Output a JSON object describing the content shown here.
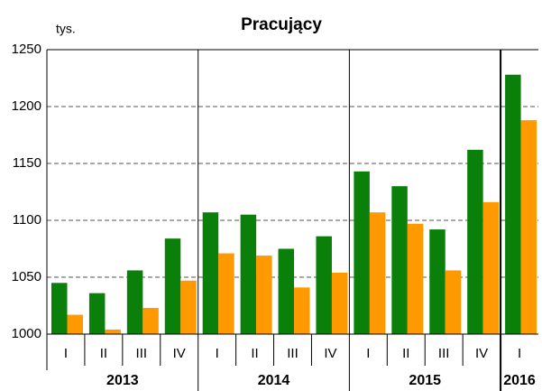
{
  "chart_data": {
    "type": "bar",
    "title": "Pracujący",
    "ylabel": "tys.",
    "groups": [
      {
        "name": "2013",
        "categories": [
          "I",
          "II",
          "III",
          "IV"
        ]
      },
      {
        "name": "2014",
        "categories": [
          "I",
          "II",
          "III",
          "IV"
        ]
      },
      {
        "name": "2015",
        "categories": [
          "I",
          "II",
          "III",
          "IV"
        ]
      },
      {
        "name": "2016",
        "categories": [
          "I"
        ]
      }
    ],
    "series": [
      {
        "color": "#0a800a",
        "values": [
          1045,
          1036,
          1056,
          1084,
          1107,
          1105,
          1075,
          1086,
          1143,
          1130,
          1092,
          1162,
          1228
        ]
      },
      {
        "color": "#ff9900",
        "values": [
          1017,
          1004,
          1023,
          1047,
          1071,
          1069,
          1041,
          1054,
          1107,
          1097,
          1056,
          1116,
          1188
        ]
      }
    ],
    "ylim": [
      1000,
      1250
    ],
    "yticks": [
      1000,
      1050,
      1100,
      1150,
      1200,
      1250
    ],
    "grid": true
  }
}
